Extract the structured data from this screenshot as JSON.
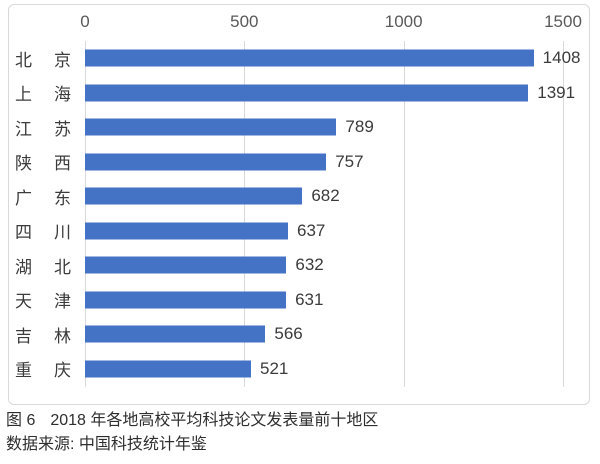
{
  "chart_data": {
    "type": "bar",
    "orientation": "horizontal",
    "title": "2018 年各地高校平均科技论文发表量前十地区",
    "categories": [
      "北京",
      "上海",
      "江苏",
      "陕西",
      "广东",
      "四川",
      "湖北",
      "天津",
      "吉林",
      "重庆"
    ],
    "values": [
      1408,
      1391,
      789,
      757,
      682,
      637,
      632,
      631,
      566,
      521
    ],
    "xlim": [
      0,
      1500
    ],
    "xticks": [
      0,
      500,
      1000,
      1500
    ],
    "xaxis_position": "top",
    "grid": true,
    "value_labels_shown": true,
    "bar_color": "#4472c4",
    "gridline_color": "#d9d9d9"
  },
  "caption": {
    "figure_label": "图 6",
    "figure_title": "2018 年各地高校平均科技论文发表量前十地区",
    "source": "数据来源: 中国科技统计年鉴"
  },
  "colors": {
    "bar": "#4472c4",
    "gridline": "#d9d9d9",
    "frame_border": "#d9d9d9",
    "axis_label": "#595959",
    "text": "#3b3b3b"
  }
}
